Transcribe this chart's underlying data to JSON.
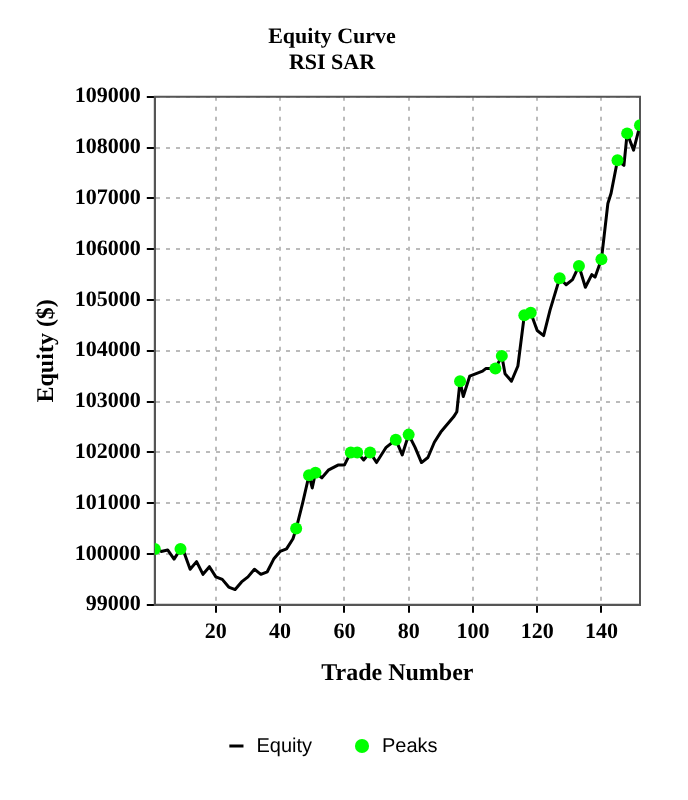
{
  "chart_data": {
    "type": "line",
    "title": "Equity Curve",
    "subtitle": "RSI SAR",
    "xlabel": "Trade Number",
    "ylabel": "Equity ($)",
    "xlim": [
      1,
      152
    ],
    "xticks": [
      20,
      40,
      60,
      80,
      100,
      120,
      140
    ],
    "ylim": [
      99000,
      109000
    ],
    "yticks": [
      99000,
      100000,
      101000,
      102000,
      103000,
      104000,
      105000,
      106000,
      107000,
      108000,
      109000
    ],
    "grid": true,
    "legend": "bottom",
    "series": [
      {
        "name": "Equity",
        "type": "line",
        "color": "#000000",
        "marker": "none",
        "x": [
          1,
          3,
          5,
          7,
          9,
          10,
          12,
          14,
          16,
          18,
          20,
          22,
          24,
          26,
          28,
          30,
          32,
          34,
          36,
          38,
          40,
          42,
          44,
          45,
          47,
          49,
          50,
          51,
          53,
          55,
          58,
          60,
          62,
          64,
          66,
          68,
          70,
          73,
          76,
          78,
          80,
          82,
          84,
          86,
          88,
          90,
          94,
          95,
          96,
          97,
          99,
          103,
          104,
          107,
          109,
          110,
          112,
          114,
          116,
          118,
          120,
          122,
          124,
          127,
          129,
          131,
          133,
          135,
          137,
          138,
          140,
          142,
          143,
          145,
          147,
          148,
          150,
          152
        ],
        "values": [
          100100,
          100050,
          100080,
          99900,
          100100,
          100050,
          99700,
          99850,
          99600,
          99750,
          99550,
          99500,
          99350,
          99300,
          99450,
          99550,
          99700,
          99600,
          99650,
          99900,
          100050,
          100100,
          100300,
          100500,
          101000,
          101550,
          101300,
          101600,
          101500,
          101650,
          101750,
          101750,
          102000,
          102000,
          101850,
          102000,
          101800,
          102100,
          102250,
          101950,
          102350,
          102100,
          101800,
          101900,
          102200,
          102400,
          102700,
          102800,
          103400,
          103100,
          103500,
          103600,
          103650,
          103650,
          103900,
          103550,
          103400,
          103700,
          104700,
          104750,
          104400,
          104300,
          104800,
          105430,
          105300,
          105400,
          105670,
          105250,
          105500,
          105450,
          105800,
          106900,
          107100,
          107750,
          107650,
          108280,
          107950,
          108440
        ]
      },
      {
        "name": "Peaks",
        "type": "scatter",
        "color": "#00ff00",
        "marker": "circle",
        "x": [
          1,
          9,
          45,
          49,
          51,
          62,
          64,
          68,
          76,
          80,
          96,
          107,
          109,
          116,
          118,
          127,
          133,
          140,
          145,
          148,
          152
        ],
        "values": [
          100100,
          100100,
          100500,
          101550,
          101600,
          102000,
          102000,
          102000,
          102250,
          102350,
          103400,
          103650,
          103900,
          104700,
          104750,
          105430,
          105670,
          105800,
          107750,
          108280,
          108440
        ]
      }
    ]
  }
}
